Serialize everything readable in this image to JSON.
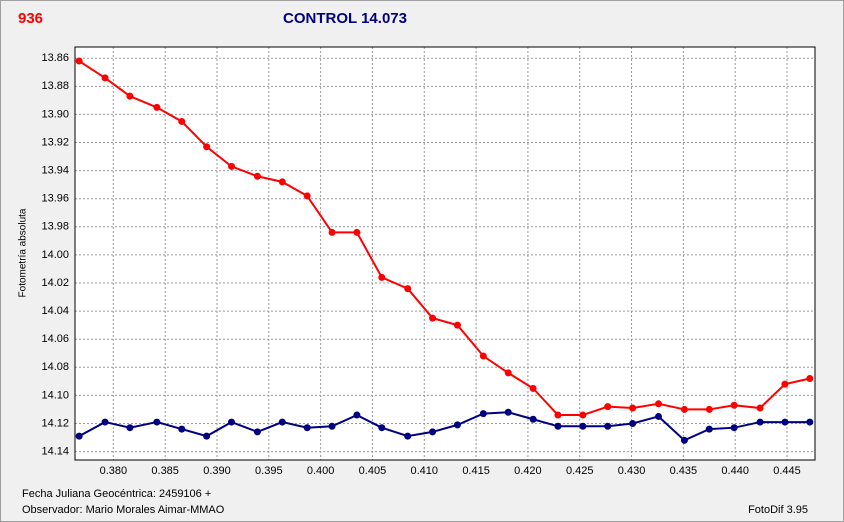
{
  "chart_data": {
    "type": "line",
    "label": "936",
    "title": "CONTROL 14.073",
    "y_label": "Fotometría absoluta",
    "x_label": "Fecha Juliana Geocéntrica: 2459106 +",
    "observer": "Observador: Mario Morales Aimar-MMAO",
    "software": "FotoDif 3.95",
    "y_inverted": true,
    "grid": true,
    "xlim": [
      0.3763,
      0.4477
    ],
    "ylim": [
      13.852,
      14.146
    ],
    "xticks": [
      {
        "value": 0.38,
        "label": "0.380"
      },
      {
        "value": 0.385,
        "label": "0.385"
      },
      {
        "value": 0.39,
        "label": "0.390"
      },
      {
        "value": 0.395,
        "label": "0.395"
      },
      {
        "value": 0.4,
        "label": "0.400"
      },
      {
        "value": 0.405,
        "label": "0.405"
      },
      {
        "value": 0.41,
        "label": "0.410"
      },
      {
        "value": 0.415,
        "label": "0.415"
      },
      {
        "value": 0.42,
        "label": "0.420"
      },
      {
        "value": 0.425,
        "label": "0.425"
      },
      {
        "value": 0.43,
        "label": "0.430"
      },
      {
        "value": 0.435,
        "label": "0.435"
      },
      {
        "value": 0.44,
        "label": "0.440"
      },
      {
        "value": 0.445,
        "label": "0.445"
      }
    ],
    "yticks": [
      13.86,
      13.88,
      {
        "value": 13.9,
        "label": "13.90"
      },
      13.92,
      13.94,
      13.96,
      13.98,
      {
        "value": 14.0,
        "label": "14.00"
      },
      14.02,
      14.04,
      14.06,
      14.08,
      {
        "value": 14.1,
        "label": "14.10"
      },
      14.12,
      14.14
    ],
    "x": [
      0.3767,
      0.3792,
      0.3816,
      0.3842,
      0.3866,
      0.389,
      0.3914,
      0.3939,
      0.3963,
      0.3987,
      0.4011,
      0.4035,
      0.4059,
      0.4084,
      0.4108,
      0.4132,
      0.4157,
      0.4181,
      0.4205,
      0.4229,
      0.4253,
      0.4277,
      0.4301,
      0.4326,
      0.4351,
      0.4375,
      0.4399,
      0.4424,
      0.4448,
      0.4472
    ],
    "series": [
      {
        "color": "#ff0000",
        "values": [
          13.862,
          13.874,
          13.887,
          13.895,
          13.905,
          13.923,
          13.937,
          13.944,
          13.948,
          13.958,
          13.984,
          13.984,
          14.016,
          14.024,
          14.045,
          14.05,
          14.072,
          14.084,
          14.095,
          14.114,
          14.114,
          14.108,
          14.109,
          14.106,
          14.11,
          14.11,
          14.107,
          14.109,
          14.092,
          14.088
        ]
      },
      {
        "color": "#000080",
        "values": [
          14.129,
          14.119,
          14.123,
          14.119,
          14.124,
          14.129,
          14.119,
          14.126,
          14.119,
          14.123,
          14.122,
          14.114,
          14.123,
          14.129,
          14.126,
          14.121,
          14.113,
          14.112,
          14.117,
          14.122,
          14.122,
          14.122,
          14.12,
          14.115,
          14.132,
          14.124,
          14.123,
          14.119,
          14.119,
          14.119
        ]
      }
    ]
  }
}
